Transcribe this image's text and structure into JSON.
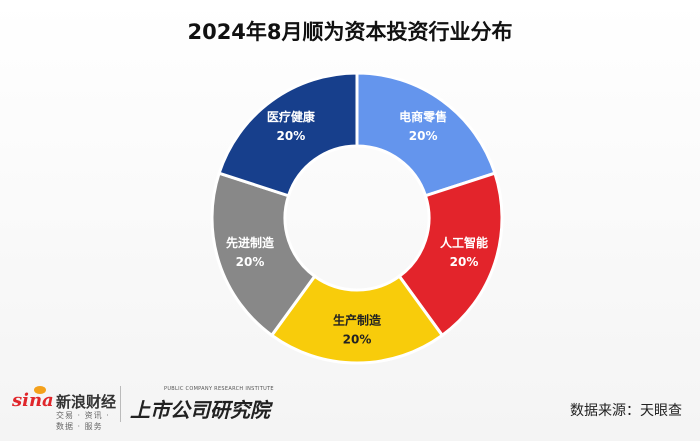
{
  "title": "2024年8月顺为资本投资行业分布",
  "chart_data": {
    "type": "pie",
    "donut": true,
    "title": "2024年8月顺为资本投资行业分布",
    "slices": [
      {
        "label": "电商零售",
        "value": 20,
        "value_label": "20%",
        "color": "#6495ed"
      },
      {
        "label": "人工智能",
        "value": 20,
        "value_label": "20%",
        "color": "#e3242b"
      },
      {
        "label": "生产制造",
        "value": 20,
        "value_label": "20%",
        "color": "#f8cc0b"
      },
      {
        "label": "先进制造",
        "value": 20,
        "value_label": "20%",
        "color": "#888888"
      },
      {
        "label": "医疗健康",
        "value": 20,
        "value_label": "20%",
        "color": "#173f8c"
      }
    ]
  },
  "footer": {
    "sina_logo_text": "sina",
    "sina_cn": "新浪财经",
    "sina_sub": "交易 · 资讯 · 数据 · 服务",
    "institute_en": "PUBLIC COMPANY RESEARCH INSTITUTE",
    "institute_cn": "上市公司研究院",
    "source": "数据来源：天眼查"
  }
}
